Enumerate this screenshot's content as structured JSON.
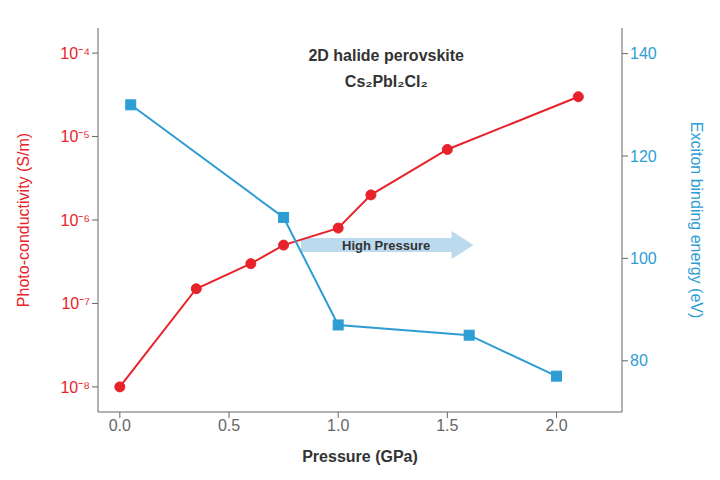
{
  "chart_data": {
    "type": "line",
    "xlabel": "Pressure (GPa)",
    "ylabel": "Photo-conductivity (S/m)",
    "y2label": "Exciton binding energy (eV)",
    "log": "y",
    "grid": false,
    "xlim": [
      -0.1,
      2.3
    ],
    "xticks": [
      {
        "value": 0.0,
        "label": "0.0"
      },
      0.5,
      {
        "value": 1.0,
        "label": "1.0"
      },
      1.5,
      {
        "value": 2.0,
        "label": "2.0"
      }
    ],
    "ylim": [
      5e-09,
      0.0002
    ],
    "yticks": [
      {
        "value": 1e-08,
        "label": "10⁻⁸"
      },
      {
        "value": 1e-07,
        "label": "10⁻⁷"
      },
      {
        "value": 1e-06,
        "label": "10⁻⁶"
      },
      {
        "value": 1e-05,
        "label": "10⁻⁵"
      },
      {
        "value": 0.0001,
        "label": "10⁻⁴"
      }
    ],
    "y2lim": [
      70,
      145
    ],
    "y2ticks": [
      80,
      100,
      120,
      140
    ],
    "series": [
      {
        "color": "#e8222a",
        "marker": "circle",
        "x": [
          0.0,
          0.35,
          0.6,
          0.75,
          1.0,
          1.15,
          1.5,
          2.1
        ],
        "values": [
          1e-08,
          1.5e-07,
          3e-07,
          5e-07,
          8e-07,
          2e-06,
          7e-06,
          3e-05
        ]
      },
      {
        "axis": "y2",
        "color": "#2e9dd4",
        "marker": "square",
        "x": [
          0.05,
          0.75,
          1.0,
          1.6,
          2.0
        ],
        "values": [
          130,
          108,
          87,
          85,
          77
        ]
      }
    ],
    "annotations": [
      {
        "text": "2D halide perovskite"
      },
      {
        "text": "Cs₂PbI₂Cl₂"
      },
      {
        "text": "High Pressure",
        "x": 1.22,
        "y": 5e-07,
        "arrow": [
          0.83,
          1.62
        ]
      }
    ]
  }
}
